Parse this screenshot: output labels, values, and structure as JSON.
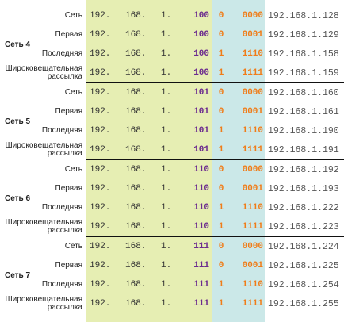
{
  "groups": [
    {
      "label": "Сеть 4",
      "rows": [
        {
          "name": "Сеть",
          "cells": [
            "192.",
            "168.",
            "1.",
            "100",
            "0",
            "0000"
          ],
          "ip": "192.168.1.128"
        },
        {
          "name": "Первая",
          "cells": [
            "192.",
            "168.",
            "1.",
            "100",
            "0",
            "0001"
          ],
          "ip": "192.168.1.129"
        },
        {
          "name": "Последняя",
          "cells": [
            "192.",
            "168.",
            "1.",
            "100",
            "1",
            "1110"
          ],
          "ip": "192.168.1.158"
        },
        {
          "name": "Широковещательная рассылка",
          "cells": [
            "192.",
            "168.",
            "1.",
            "100",
            "1",
            "1111"
          ],
          "ip": "192.168.1.159"
        }
      ]
    },
    {
      "label": "Сеть 5",
      "rows": [
        {
          "name": "Сеть",
          "cells": [
            "192.",
            "168.",
            "1.",
            "101",
            "0",
            "0000"
          ],
          "ip": "192.168.1.160"
        },
        {
          "name": "Первая",
          "cells": [
            "192.",
            "168.",
            "1.",
            "101",
            "0",
            "0001"
          ],
          "ip": "192.168.1.161"
        },
        {
          "name": "Последняя",
          "cells": [
            "192.",
            "168.",
            "1.",
            "101",
            "1",
            "1110"
          ],
          "ip": "192.168.1.190"
        },
        {
          "name": "Широковещательная рассылка",
          "cells": [
            "192.",
            "168.",
            "1.",
            "101",
            "1",
            "1111"
          ],
          "ip": "192.168.1.191"
        }
      ]
    },
    {
      "label": "Сеть 6",
      "rows": [
        {
          "name": "Сеть",
          "cells": [
            "192.",
            "168.",
            "1.",
            "110",
            "0",
            "0000"
          ],
          "ip": "192.168.1.192"
        },
        {
          "name": "Первая",
          "cells": [
            "192.",
            "168.",
            "1.",
            "110",
            "0",
            "0001"
          ],
          "ip": "192.168.1.193"
        },
        {
          "name": "Последняя",
          "cells": [
            "192.",
            "168.",
            "1.",
            "110",
            "1",
            "1110"
          ],
          "ip": "192.168.1.222"
        },
        {
          "name": "Широковещательная рассылка",
          "cells": [
            "192.",
            "168.",
            "1.",
            "110",
            "1",
            "1111"
          ],
          "ip": "192.168.1.223"
        }
      ]
    },
    {
      "label": "Сеть 7",
      "rows": [
        {
          "name": "Сеть",
          "cells": [
            "192.",
            "168.",
            "1.",
            "111",
            "0",
            "0000"
          ],
          "ip": "192.168.1.224"
        },
        {
          "name": "Первая",
          "cells": [
            "192.",
            "168.",
            "1.",
            "111",
            "0",
            "0001"
          ],
          "ip": "192.168.1.225"
        },
        {
          "name": "Последняя",
          "cells": [
            "192.",
            "168.",
            "1.",
            "111",
            "1",
            "1110"
          ],
          "ip": "192.168.1.254"
        },
        {
          "name": "Широковещательная рассылка",
          "cells": [
            "192.",
            "168.",
            "1.",
            "111",
            "1",
            "1111"
          ],
          "ip": "192.168.1.255"
        }
      ]
    }
  ]
}
